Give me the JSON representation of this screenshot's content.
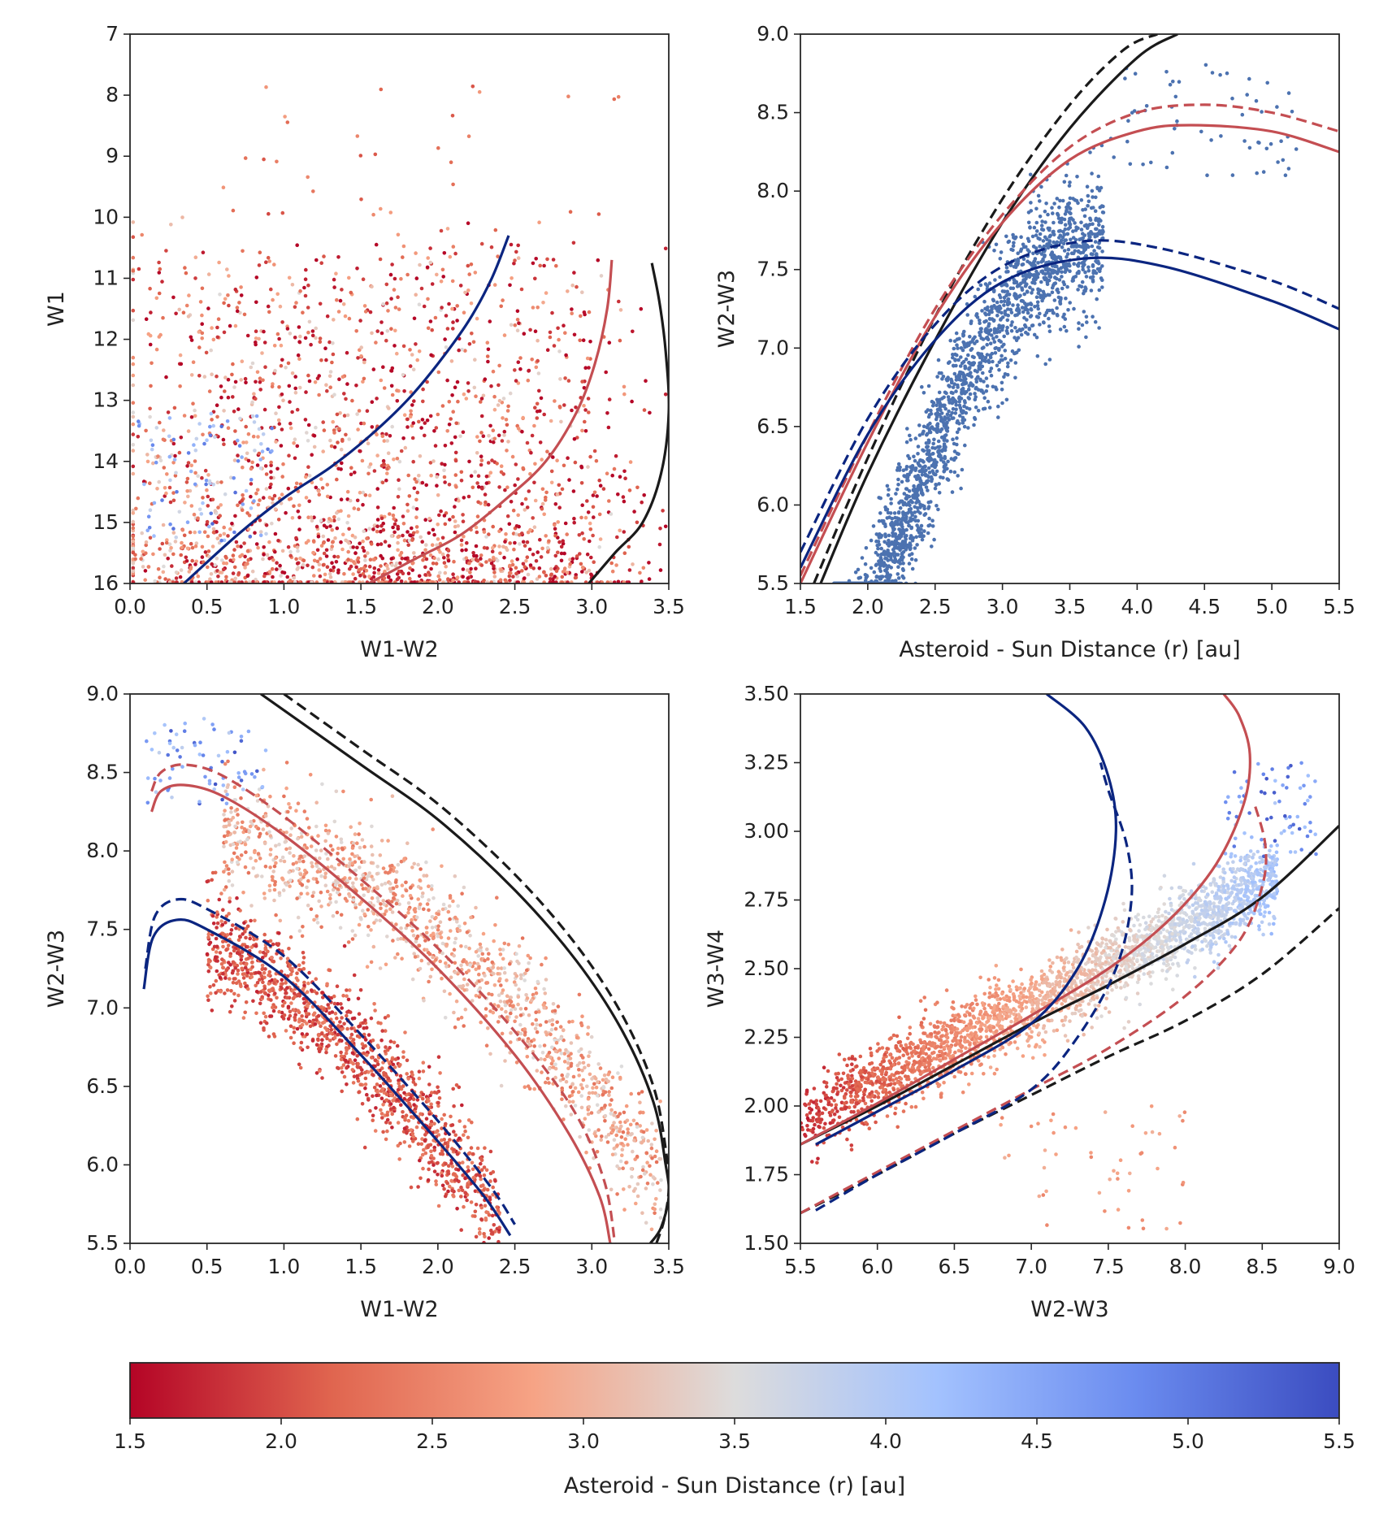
{
  "chart_data": [
    {
      "type": "scatter",
      "xlabel": "W1-W2",
      "ylabel": "W1",
      "xlim": [
        0.0,
        3.5
      ],
      "ylim": [
        7,
        16
      ],
      "y_inverted": true,
      "xticks": [
        "0.0",
        "0.5",
        "1.0",
        "1.5",
        "2.0",
        "2.5",
        "3.0",
        "3.5"
      ],
      "yticks": [
        "7",
        "8",
        "9",
        "10",
        "11",
        "12",
        "13",
        "14",
        "15",
        "16"
      ],
      "point_color_by": "Asteroid - Sun Distance (r) [au]",
      "curves": [
        {
          "color": "#0b2580",
          "style": "solid",
          "x": [
            0.35,
            0.7,
            1.0,
            1.3,
            1.55,
            1.8,
            2.0,
            2.2,
            2.35,
            2.46
          ],
          "y": [
            16.0,
            15.2,
            14.6,
            14.1,
            13.6,
            13.0,
            12.4,
            11.7,
            11.0,
            10.3
          ]
        },
        {
          "color": "#c44e52",
          "style": "solid",
          "x": [
            1.55,
            1.85,
            2.15,
            2.45,
            2.7,
            2.9,
            3.02,
            3.1,
            3.13
          ],
          "y": [
            16.0,
            15.6,
            15.2,
            14.6,
            14.0,
            13.2,
            12.4,
            11.5,
            10.7
          ]
        },
        {
          "color": "#1a1a1a",
          "style": "solid",
          "x": [
            2.98,
            3.15,
            3.33,
            3.45,
            3.5,
            3.48,
            3.44,
            3.39
          ],
          "y": [
            16.0,
            15.5,
            15.0,
            14.2,
            13.2,
            12.2,
            11.4,
            10.75
          ]
        }
      ]
    },
    {
      "type": "scatter",
      "xlabel": "Asteroid - Sun Distance (r) [au]",
      "ylabel": "W2-W3",
      "xlim": [
        1.5,
        5.5
      ],
      "ylim": [
        5.5,
        9.0
      ],
      "xticks": [
        "1.5",
        "2.0",
        "2.5",
        "3.0",
        "3.5",
        "4.0",
        "4.5",
        "5.0",
        "5.5"
      ],
      "yticks": [
        "5.5",
        "6.0",
        "6.5",
        "7.0",
        "7.5",
        "8.0",
        "8.5",
        "9.0"
      ],
      "point_color": "#4c72b0",
      "curves": [
        {
          "color": "#1a1a1a",
          "style": "solid",
          "x": [
            1.65,
            2.0,
            2.5,
            3.0,
            3.5,
            4.0,
            4.3
          ],
          "y": [
            5.5,
            6.2,
            7.05,
            7.8,
            8.4,
            8.85,
            9.0
          ]
        },
        {
          "color": "#1a1a1a",
          "style": "dashed",
          "x": [
            1.6,
            2.0,
            2.5,
            3.0,
            3.5,
            3.9,
            4.15
          ],
          "y": [
            5.5,
            6.3,
            7.2,
            7.95,
            8.55,
            8.9,
            9.0
          ]
        },
        {
          "color": "#c44e52",
          "style": "solid",
          "x": [
            1.5,
            2.0,
            2.5,
            3.0,
            3.5,
            4.0,
            4.4,
            5.0,
            5.5
          ],
          "y": [
            5.5,
            6.4,
            7.2,
            7.8,
            8.2,
            8.38,
            8.42,
            8.38,
            8.25
          ]
        },
        {
          "color": "#c44e52",
          "style": "dashed",
          "x": [
            1.5,
            2.0,
            2.5,
            3.0,
            3.5,
            4.0,
            4.5,
            5.0,
            5.5
          ],
          "y": [
            5.55,
            6.45,
            7.25,
            7.85,
            8.28,
            8.5,
            8.55,
            8.5,
            8.38
          ]
        },
        {
          "color": "#0b2580",
          "style": "solid",
          "x": [
            1.5,
            2.0,
            2.5,
            3.0,
            3.6,
            4.2,
            5.0,
            5.5
          ],
          "y": [
            5.6,
            6.45,
            7.05,
            7.42,
            7.57,
            7.52,
            7.3,
            7.12
          ]
        },
        {
          "color": "#0b2580",
          "style": "dashed",
          "x": [
            1.5,
            2.0,
            2.5,
            3.0,
            3.6,
            4.2,
            5.0,
            5.5
          ],
          "y": [
            5.7,
            6.55,
            7.15,
            7.52,
            7.68,
            7.63,
            7.43,
            7.25
          ]
        }
      ]
    },
    {
      "type": "scatter",
      "xlabel": "W1-W2",
      "ylabel": "W2-W3",
      "xlim": [
        0.0,
        3.5
      ],
      "ylim": [
        5.5,
        9.0
      ],
      "xticks": [
        "0.0",
        "0.5",
        "1.0",
        "1.5",
        "2.0",
        "2.5",
        "3.0",
        "3.5"
      ],
      "yticks": [
        "5.5",
        "6.0",
        "6.5",
        "7.0",
        "7.5",
        "8.0",
        "8.5",
        "9.0"
      ],
      "point_color_by": "Asteroid - Sun Distance (r) [au]",
      "curves": [
        {
          "color": "#1a1a1a",
          "style": "solid",
          "x": [
            0.85,
            1.5,
            2.0,
            2.5,
            2.9,
            3.2,
            3.4,
            3.48,
            3.5,
            3.45,
            3.38
          ],
          "y": [
            9.0,
            8.55,
            8.2,
            7.75,
            7.3,
            6.85,
            6.4,
            6.0,
            5.8,
            5.6,
            5.5
          ]
        },
        {
          "color": "#1a1a1a",
          "style": "dashed",
          "x": [
            1.0,
            1.5,
            2.0,
            2.5,
            2.9,
            3.2,
            3.4,
            3.48,
            3.5,
            3.47,
            3.42
          ],
          "y": [
            9.0,
            8.65,
            8.3,
            7.85,
            7.4,
            6.95,
            6.5,
            6.1,
            5.85,
            5.65,
            5.5
          ]
        },
        {
          "color": "#c44e52",
          "style": "solid",
          "x": [
            0.14,
            0.2,
            0.35,
            0.6,
            1.0,
            1.5,
            2.0,
            2.5,
            2.85,
            3.05,
            3.12
          ],
          "y": [
            8.25,
            8.38,
            8.42,
            8.35,
            8.1,
            7.7,
            7.25,
            6.7,
            6.2,
            5.8,
            5.5
          ]
        },
        {
          "color": "#c44e52",
          "style": "dashed",
          "x": [
            0.14,
            0.2,
            0.35,
            0.6,
            1.0,
            1.5,
            2.0,
            2.5,
            2.88,
            3.08,
            3.15
          ],
          "y": [
            8.38,
            8.5,
            8.55,
            8.48,
            8.22,
            7.82,
            7.38,
            6.85,
            6.35,
            5.9,
            5.5
          ]
        },
        {
          "color": "#0b2580",
          "style": "solid",
          "x": [
            0.09,
            0.15,
            0.3,
            0.5,
            1.0,
            1.5,
            2.0,
            2.3,
            2.47
          ],
          "y": [
            7.12,
            7.45,
            7.56,
            7.5,
            7.2,
            6.7,
            6.15,
            5.8,
            5.55
          ]
        },
        {
          "color": "#0b2580",
          "style": "dashed",
          "x": [
            0.1,
            0.16,
            0.3,
            0.5,
            1.0,
            1.5,
            2.0,
            2.35,
            2.5
          ],
          "y": [
            7.25,
            7.58,
            7.69,
            7.63,
            7.33,
            6.83,
            6.28,
            5.85,
            5.62
          ]
        }
      ]
    },
    {
      "type": "scatter",
      "xlabel": "W2-W3",
      "ylabel": "W3-W4",
      "xlim": [
        5.5,
        9.0
      ],
      "ylim": [
        1.5,
        3.5
      ],
      "xticks": [
        "5.5",
        "6.0",
        "6.5",
        "7.0",
        "7.5",
        "8.0",
        "8.5",
        "9.0"
      ],
      "yticks": [
        "1.50",
        "1.75",
        "2.00",
        "2.25",
        "2.50",
        "2.75",
        "3.00",
        "3.25",
        "3.50"
      ],
      "point_color_by": "Asteroid - Sun Distance (r) [au]",
      "curves": [
        {
          "color": "#1a1a1a",
          "style": "solid",
          "x": [
            5.5,
            6.0,
            6.5,
            7.0,
            7.5,
            8.0,
            8.5,
            9.0
          ],
          "y": [
            1.86,
            2.0,
            2.15,
            2.3,
            2.44,
            2.59,
            2.76,
            3.02
          ]
        },
        {
          "color": "#1a1a1a",
          "style": "dashed",
          "x": [
            5.5,
            6.0,
            6.5,
            7.0,
            7.5,
            8.0,
            8.5,
            9.0
          ],
          "y": [
            1.61,
            1.75,
            1.9,
            2.04,
            2.18,
            2.31,
            2.48,
            2.72
          ]
        },
        {
          "color": "#c44e52",
          "style": "solid",
          "x": [
            5.5,
            6.0,
            6.5,
            7.0,
            7.5,
            7.9,
            8.2,
            8.38,
            8.42,
            8.35,
            8.25
          ],
          "y": [
            1.86,
            2.01,
            2.17,
            2.33,
            2.5,
            2.68,
            2.88,
            3.1,
            3.28,
            3.42,
            3.5
          ]
        },
        {
          "color": "#c44e52",
          "style": "dashed",
          "x": [
            5.5,
            6.0,
            6.5,
            7.0,
            7.5,
            8.0,
            8.35,
            8.5,
            8.52,
            8.45
          ],
          "y": [
            1.61,
            1.76,
            1.91,
            2.06,
            2.21,
            2.4,
            2.6,
            2.8,
            2.95,
            3.1
          ]
        },
        {
          "color": "#0b2580",
          "style": "solid",
          "x": [
            5.6,
            6.0,
            6.5,
            7.0,
            7.3,
            7.48,
            7.55,
            7.5,
            7.35,
            7.1
          ],
          "y": [
            1.86,
            1.98,
            2.13,
            2.3,
            2.5,
            2.75,
            3.0,
            3.2,
            3.38,
            3.5
          ]
        },
        {
          "color": "#0b2580",
          "style": "dashed",
          "x": [
            5.6,
            6.0,
            6.5,
            7.0,
            7.3,
            7.55,
            7.65,
            7.62,
            7.5,
            7.45
          ],
          "y": [
            1.62,
            1.75,
            1.9,
            2.06,
            2.25,
            2.5,
            2.75,
            2.95,
            3.15,
            3.25
          ]
        }
      ]
    }
  ],
  "colorbar": {
    "label": "Asteroid - Sun Distance (r) [au]",
    "range": [
      1.5,
      5.5
    ],
    "ticks": [
      "1.5",
      "2.0",
      "2.5",
      "3.0",
      "3.5",
      "4.0",
      "4.5",
      "5.0",
      "5.5"
    ],
    "colors": [
      "#b40426",
      "#e0654f",
      "#f6a385",
      "#dddcdc",
      "#a3c2fe",
      "#6a8bef",
      "#3b4cc0"
    ]
  }
}
